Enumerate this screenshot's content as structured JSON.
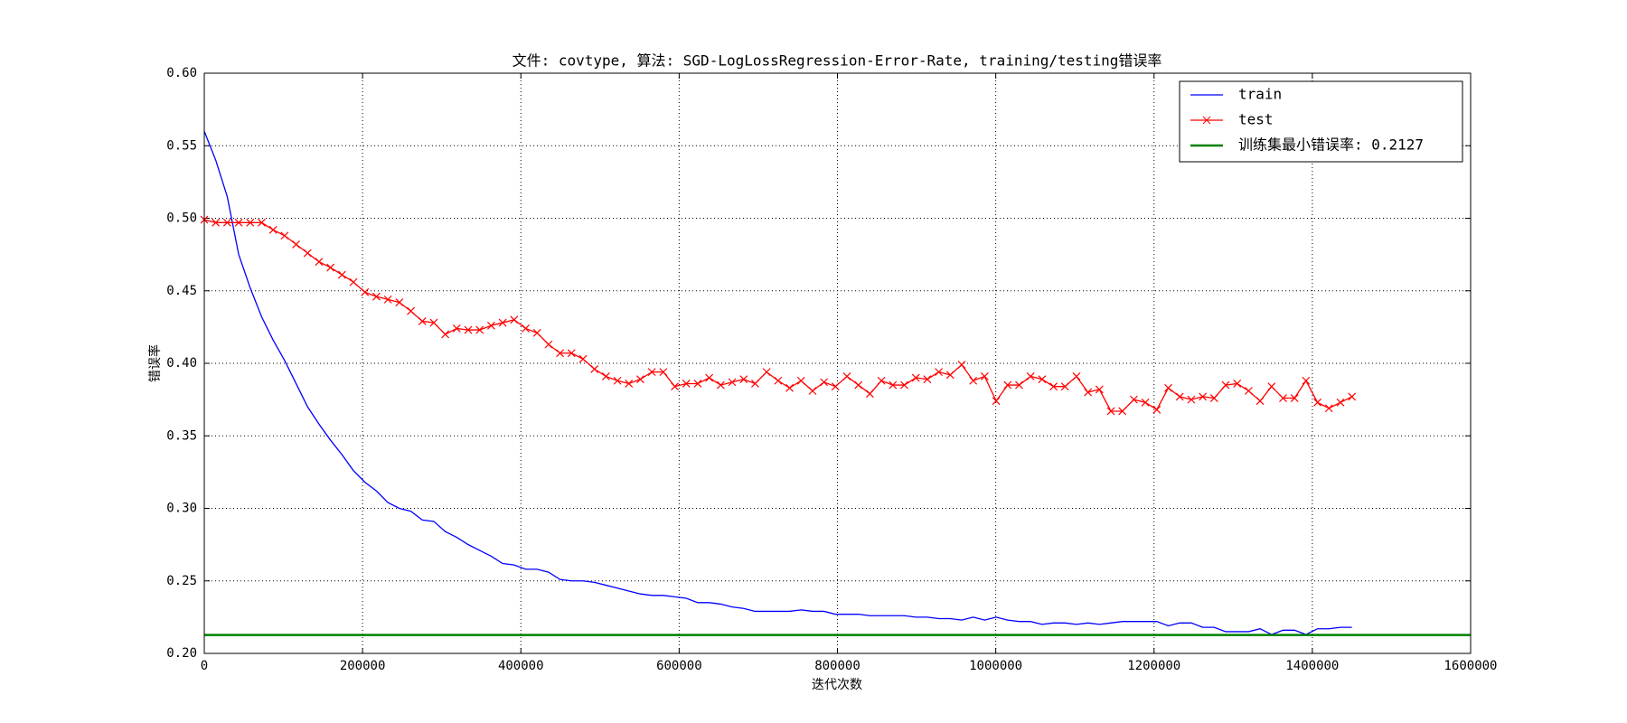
{
  "chart_data": {
    "type": "line",
    "title": "文件: covtype, 算法: SGD-LogLossRegression-Error-Rate, training/testing错误率",
    "xlabel": "迭代次数",
    "ylabel": "错误率",
    "x": [
      0,
      14500,
      29000,
      43500,
      58000,
      72500,
      87000,
      101500,
      116000,
      130500,
      145000,
      159500,
      174000,
      188500,
      203000,
      217500,
      232000,
      246500,
      261000,
      275500,
      290000,
      304500,
      319000,
      333500,
      348000,
      362500,
      377000,
      391500,
      406000,
      420500,
      435000,
      449500,
      464000,
      478500,
      493000,
      507500,
      522000,
      536500,
      551000,
      565500,
      580000,
      594500,
      609000,
      623500,
      638000,
      652500,
      667000,
      681500,
      696000,
      710500,
      725000,
      739500,
      754000,
      768500,
      783000,
      797500,
      812000,
      826500,
      841000,
      855500,
      870000,
      884500,
      899000,
      913500,
      928000,
      942500,
      957000,
      971500,
      986000,
      1000500,
      1015000,
      1029500,
      1044000,
      1058500,
      1073000,
      1087500,
      1102000,
      1116500,
      1131000,
      1145500,
      1160000,
      1174500,
      1189000,
      1203500,
      1218000,
      1232500,
      1247000,
      1261500,
      1276000,
      1290500,
      1305000,
      1319500,
      1334000,
      1348500,
      1363000,
      1377500,
      1392000,
      1406500,
      1421000,
      1435500,
      1450000
    ],
    "series": [
      {
        "name": "train",
        "color": "#0000ff",
        "values": [
          0.56,
          0.54,
          0.515,
          0.475,
          0.452,
          0.432,
          0.416,
          0.402,
          0.386,
          0.37,
          0.358,
          0.347,
          0.337,
          0.326,
          0.318,
          0.312,
          0.304,
          0.3,
          0.298,
          0.292,
          0.291,
          0.284,
          0.28,
          0.275,
          0.271,
          0.267,
          0.262,
          0.261,
          0.258,
          0.258,
          0.256,
          0.251,
          0.25,
          0.25,
          0.249,
          0.247,
          0.245,
          0.243,
          0.241,
          0.24,
          0.24,
          0.239,
          0.238,
          0.235,
          0.235,
          0.234,
          0.232,
          0.231,
          0.229,
          0.229,
          0.229,
          0.229,
          0.23,
          0.229,
          0.229,
          0.227,
          0.227,
          0.227,
          0.226,
          0.226,
          0.226,
          0.226,
          0.225,
          0.225,
          0.224,
          0.224,
          0.223,
          0.225,
          0.223,
          0.225,
          0.223,
          0.222,
          0.222,
          0.22,
          0.221,
          0.221,
          0.22,
          0.221,
          0.22,
          0.221,
          0.222,
          0.222,
          0.222,
          0.222,
          0.219,
          0.221,
          0.221,
          0.218,
          0.218,
          0.215,
          0.215,
          0.215,
          0.217,
          0.213,
          0.216,
          0.216,
          0.213,
          0.217,
          0.217,
          0.218,
          0.218
        ]
      },
      {
        "name": "test",
        "color": "#ff0000",
        "marker": "x",
        "values": [
          0.499,
          0.497,
          0.497,
          0.497,
          0.497,
          0.497,
          0.492,
          0.488,
          0.482,
          0.476,
          0.47,
          0.466,
          0.461,
          0.456,
          0.449,
          0.446,
          0.444,
          0.442,
          0.436,
          0.429,
          0.428,
          0.42,
          0.424,
          0.423,
          0.423,
          0.426,
          0.428,
          0.43,
          0.424,
          0.421,
          0.413,
          0.407,
          0.407,
          0.403,
          0.396,
          0.391,
          0.388,
          0.386,
          0.389,
          0.394,
          0.394,
          0.384,
          0.386,
          0.386,
          0.39,
          0.385,
          0.387,
          0.389,
          0.386,
          0.394,
          0.388,
          0.383,
          0.388,
          0.381,
          0.387,
          0.384,
          0.391,
          0.385,
          0.379,
          0.388,
          0.385,
          0.385,
          0.39,
          0.389,
          0.394,
          0.392,
          0.399,
          0.388,
          0.391,
          0.374,
          0.385,
          0.385,
          0.391,
          0.389,
          0.384,
          0.384,
          0.391,
          0.38,
          0.382,
          0.367,
          0.367,
          0.375,
          0.373,
          0.368,
          0.383,
          0.377,
          0.375,
          0.377,
          0.376,
          0.385,
          0.386,
          0.381,
          0.374,
          0.384,
          0.376,
          0.376,
          0.388,
          0.373,
          0.369,
          0.373,
          0.377
        ]
      }
    ],
    "hlines": [
      {
        "name": "训练集最小错误率: 0.2127",
        "color": "#008000",
        "value": 0.2127
      }
    ],
    "xlim": [
      0,
      1600000
    ],
    "xticks": [
      0,
      200000,
      400000,
      600000,
      800000,
      1000000,
      1200000,
      1400000,
      1600000
    ],
    "ylim": [
      0.2,
      0.6
    ],
    "yticks": [
      {
        "value": 0.2,
        "label": "0.20"
      },
      {
        "value": 0.25,
        "label": "0.25"
      },
      {
        "value": 0.3,
        "label": "0.30"
      },
      {
        "value": 0.35,
        "label": "0.35"
      },
      {
        "value": 0.4,
        "label": "0.40"
      },
      {
        "value": 0.45,
        "label": "0.45"
      },
      {
        "value": 0.5,
        "label": "0.50"
      },
      {
        "value": 0.55,
        "label": "0.55"
      },
      {
        "value": 0.6,
        "label": "0.60"
      }
    ],
    "grid": true,
    "legend": "upper right"
  }
}
